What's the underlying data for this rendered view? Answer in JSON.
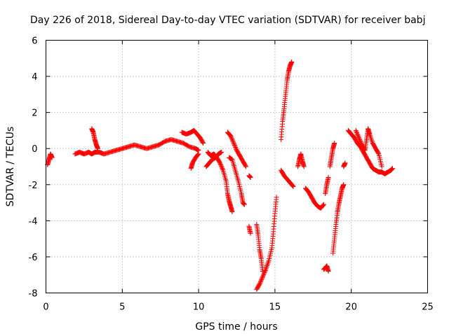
{
  "chart_data": {
    "type": "scatter",
    "title": "Day 226 of 2018, Sidereal Day-to-day VTEC variation (SDTVAR) for receiver babj",
    "xlabel": "GPS time / hours",
    "ylabel": "SDTVAR / TECUs",
    "xlim": [
      0,
      25
    ],
    "ylim": [
      -8,
      6
    ],
    "xticks": [
      "0",
      "5",
      "10",
      "15",
      "20",
      "25"
    ],
    "yticks": [
      "-8",
      "-6",
      "-4",
      "-2",
      "0",
      "2",
      "4",
      "6"
    ],
    "grid": true,
    "marker": "plus",
    "color": "#ff0000",
    "series": [
      {
        "name": "SDTVAR",
        "segments": [
          [
            [
              0.1,
              -0.9
            ],
            [
              0.2,
              -0.6
            ],
            [
              0.3,
              -0.3
            ],
            [
              0.4,
              -0.5
            ]
          ],
          [
            [
              1.9,
              -0.3
            ],
            [
              2.2,
              -0.2
            ],
            [
              2.5,
              -0.3
            ],
            [
              2.8,
              -0.2
            ],
            [
              3.0,
              -0.3
            ],
            [
              3.2,
              -0.2
            ],
            [
              3.5,
              -0.2
            ],
            [
              3.8,
              -0.3
            ],
            [
              4.2,
              -0.2
            ],
            [
              4.6,
              -0.1
            ],
            [
              5.0,
              0.0
            ],
            [
              5.4,
              0.1
            ],
            [
              5.8,
              0.2
            ],
            [
              6.2,
              0.1
            ],
            [
              6.6,
              0.0
            ],
            [
              7.0,
              0.1
            ],
            [
              7.4,
              0.2
            ],
            [
              7.8,
              0.4
            ],
            [
              8.2,
              0.5
            ],
            [
              8.6,
              0.4
            ],
            [
              9.0,
              0.3
            ],
            [
              9.4,
              0.1
            ],
            [
              9.8,
              0.0
            ],
            [
              10.0,
              -0.1
            ]
          ],
          [
            [
              3.0,
              1.1
            ],
            [
              3.1,
              0.9
            ],
            [
              3.2,
              0.5
            ],
            [
              3.3,
              0.2
            ],
            [
              3.4,
              0.0
            ]
          ],
          [
            [
              8.9,
              0.9
            ],
            [
              9.2,
              0.8
            ],
            [
              9.5,
              0.9
            ],
            [
              9.7,
              1.0
            ],
            [
              9.9,
              0.8
            ],
            [
              10.1,
              0.6
            ],
            [
              10.3,
              0.3
            ]
          ],
          [
            [
              9.5,
              -1.1
            ],
            [
              9.6,
              -0.8
            ],
            [
              9.8,
              -0.5
            ],
            [
              10.0,
              -0.3
            ]
          ],
          [
            [
              10.5,
              -1.0
            ],
            [
              10.7,
              -0.8
            ],
            [
              10.9,
              -0.6
            ],
            [
              11.1,
              -0.5
            ],
            [
              11.3,
              -0.3
            ],
            [
              11.5,
              -0.2
            ]
          ],
          [
            [
              10.6,
              -0.2
            ],
            [
              10.8,
              -0.4
            ],
            [
              11.0,
              -0.3
            ],
            [
              11.2,
              -0.5
            ],
            [
              11.4,
              -0.8
            ],
            [
              11.6,
              -1.2
            ],
            [
              11.8,
              -1.8
            ],
            [
              11.9,
              -2.5
            ],
            [
              12.0,
              -2.9
            ],
            [
              12.1,
              -3.2
            ],
            [
              12.2,
              -3.5
            ]
          ],
          [
            [
              11.9,
              0.9
            ],
            [
              12.1,
              0.7
            ],
            [
              12.3,
              0.3
            ],
            [
              12.5,
              -0.1
            ],
            [
              12.7,
              -0.4
            ],
            [
              12.9,
              -0.7
            ],
            [
              13.1,
              -1.0
            ]
          ],
          [
            [
              12.0,
              -0.5
            ],
            [
              12.2,
              -0.6
            ],
            [
              12.4,
              -1.2
            ],
            [
              12.6,
              -1.8
            ],
            [
              12.8,
              -2.5
            ],
            [
              12.9,
              -3.0
            ],
            [
              13.0,
              -3.1
            ]
          ],
          [
            [
              13.3,
              -1.5
            ],
            [
              13.4,
              -1.6
            ]
          ],
          [
            [
              13.3,
              -4.3
            ],
            [
              13.4,
              -4.7
            ]
          ],
          [
            [
              13.8,
              -4.2
            ],
            [
              13.9,
              -4.8
            ],
            [
              14.0,
              -5.6
            ],
            [
              14.1,
              -6.1
            ],
            [
              14.2,
              -6.8
            ]
          ],
          [
            [
              13.8,
              -7.8
            ],
            [
              14.0,
              -7.5
            ],
            [
              14.2,
              -7.1
            ],
            [
              14.4,
              -6.7
            ],
            [
              14.6,
              -6.2
            ],
            [
              14.8,
              -5.5
            ],
            [
              14.9,
              -4.6
            ],
            [
              15.0,
              -3.6
            ],
            [
              15.1,
              -2.7
            ]
          ],
          [
            [
              15.4,
              0.5
            ],
            [
              15.5,
              1.5
            ],
            [
              15.6,
              2.2
            ],
            [
              15.7,
              3.0
            ],
            [
              15.8,
              3.8
            ],
            [
              15.9,
              4.3
            ],
            [
              16.0,
              4.6
            ],
            [
              16.1,
              4.8
            ]
          ],
          [
            [
              15.4,
              -1.2
            ],
            [
              15.6,
              -1.5
            ],
            [
              15.8,
              -1.7
            ],
            [
              16.0,
              -1.9
            ],
            [
              16.2,
              -2.1
            ]
          ],
          [
            [
              16.5,
              -1.0
            ],
            [
              16.6,
              -0.6
            ],
            [
              16.7,
              -0.3
            ],
            [
              16.8,
              -0.7
            ],
            [
              16.9,
              -1.0
            ]
          ],
          [
            [
              17.0,
              -2.2
            ],
            [
              17.2,
              -2.4
            ],
            [
              17.4,
              -2.7
            ],
            [
              17.6,
              -3.0
            ],
            [
              17.8,
              -3.2
            ],
            [
              18.0,
              -3.3
            ],
            [
              18.2,
              -3.1
            ]
          ],
          [
            [
              18.2,
              -6.7
            ],
            [
              18.4,
              -6.5
            ],
            [
              18.5,
              -6.8
            ]
          ],
          [
            [
              18.3,
              -2.5
            ],
            [
              18.4,
              -2.0
            ],
            [
              18.5,
              -1.6
            ]
          ],
          [
            [
              18.6,
              -1.0
            ],
            [
              18.7,
              -0.5
            ],
            [
              18.8,
              0.0
            ],
            [
              18.9,
              0.3
            ]
          ],
          [
            [
              18.8,
              -5.8
            ],
            [
              18.9,
              -5.0
            ],
            [
              19.0,
              -4.2
            ],
            [
              19.1,
              -3.5
            ],
            [
              19.2,
              -3.0
            ],
            [
              19.3,
              -2.6
            ],
            [
              19.4,
              -2.2
            ],
            [
              19.5,
              -2.0
            ]
          ],
          [
            [
              19.5,
              -1.0
            ],
            [
              19.6,
              -0.8
            ]
          ],
          [
            [
              19.8,
              1.0
            ],
            [
              20.0,
              0.8
            ],
            [
              20.2,
              0.6
            ],
            [
              20.4,
              0.3
            ],
            [
              20.6,
              0.1
            ],
            [
              20.8,
              -0.2
            ],
            [
              21.0,
              -0.5
            ],
            [
              21.2,
              -0.8
            ],
            [
              21.4,
              -1.1
            ],
            [
              21.6,
              -1.2
            ],
            [
              21.8,
              -1.3
            ],
            [
              22.0,
              -1.3
            ],
            [
              22.2,
              -1.4
            ],
            [
              22.4,
              -1.3
            ],
            [
              22.6,
              -1.2
            ],
            [
              22.7,
              -1.1
            ]
          ],
          [
            [
              20.3,
              1.0
            ],
            [
              20.5,
              0.6
            ],
            [
              20.7,
              0.2
            ],
            [
              20.9,
              -0.1
            ],
            [
              21.0,
              0.5
            ],
            [
              21.1,
              1.1
            ],
            [
              21.2,
              0.8
            ],
            [
              21.4,
              0.3
            ],
            [
              21.6,
              0.0
            ],
            [
              21.8,
              -0.3
            ],
            [
              22.0,
              -1.0
            ]
          ]
        ]
      }
    ]
  }
}
